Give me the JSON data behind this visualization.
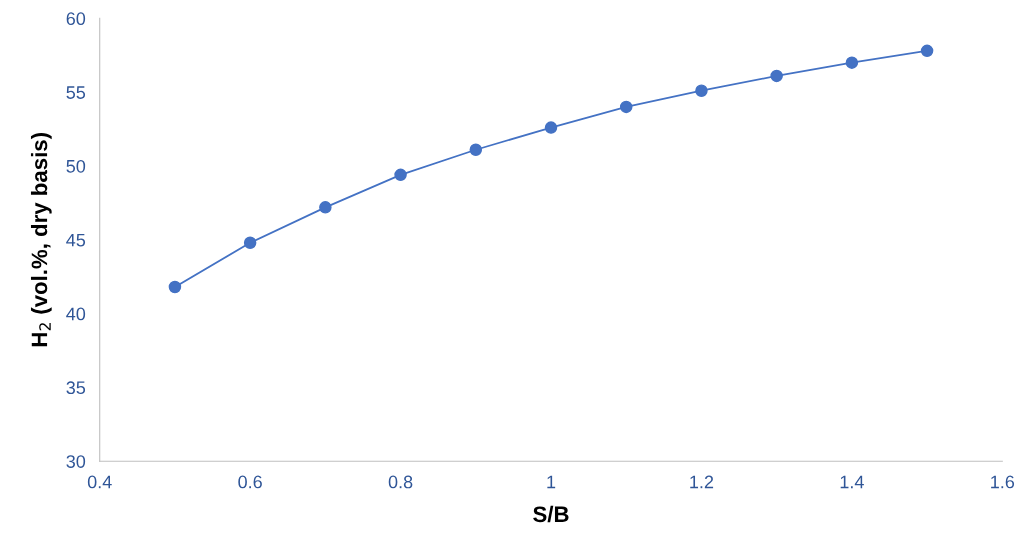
{
  "chart_data": {
    "type": "line",
    "xlabel": "S/B",
    "ylabel": "H$_{2}$ (vol.%, dry basis)",
    "x": [
      0.5,
      0.6,
      0.7,
      0.8,
      0.9,
      1.0,
      1.1,
      1.2,
      1.3,
      1.4,
      1.5
    ],
    "series": [
      {
        "color": "#4472c4",
        "values": [
          41.8,
          44.8,
          47.2,
          49.4,
          51.1,
          52.6,
          54.0,
          55.1,
          56.1,
          57.0,
          57.8
        ]
      }
    ],
    "xlim": [
      0.4,
      1.6
    ],
    "xticks": [
      0.4,
      0.6,
      0.8,
      1,
      1.2,
      1.4,
      1.6
    ],
    "ylim": [
      30,
      60
    ],
    "yticks": [
      30,
      35,
      40,
      45,
      50,
      55,
      60
    ],
    "grid": false,
    "legend": false,
    "marker": "circle",
    "line_style": "solid"
  }
}
